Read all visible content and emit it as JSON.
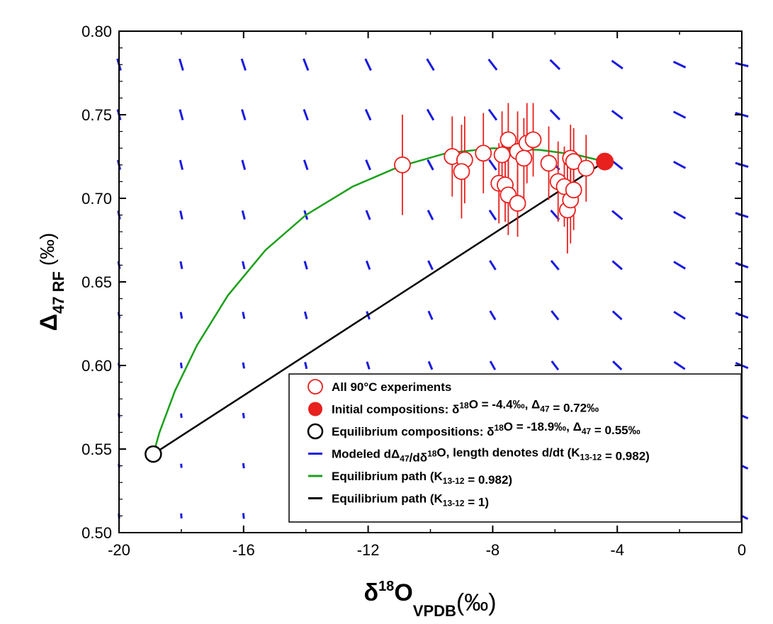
{
  "chart_data": {
    "type": "scatter",
    "title": "",
    "xlabel": {
      "main": "δ",
      "sup": "18",
      "tail": "O",
      "sub": "VPDB",
      "unit": "(‰)"
    },
    "ylabel": {
      "main": "Δ",
      "sub": "47 RF",
      "unit": "(‰)"
    },
    "xlim": [
      -20,
      0
    ],
    "ylim": [
      0.5,
      0.8
    ],
    "x_ticks": [
      -20,
      -16,
      -12,
      -8,
      -4,
      0
    ],
    "x_tick_labels": [
      "-20",
      "-16",
      "-12",
      "-8",
      "-4",
      "0"
    ],
    "y_ticks": [
      0.5,
      0.55,
      0.6,
      0.65,
      0.7,
      0.75,
      0.8
    ],
    "y_tick_labels": [
      "0.50",
      "0.55",
      "0.60",
      "0.65",
      "0.70",
      "0.75",
      "0.80"
    ],
    "grid": false,
    "legend_position": "bottom-right",
    "colors": {
      "experiments": "#e8201e",
      "initial": "#e8201e",
      "equilibrium": "#000000",
      "modeled": "#1a1adf",
      "path_k0982": "#1aa01a",
      "path_k1": "#000000"
    },
    "series": [
      {
        "name": "All 90°C experiments",
        "marker": "open-circle",
        "points": [
          {
            "x": -10.9,
            "y": 0.72,
            "err": 0.015
          },
          {
            "x": -9.3,
            "y": 0.725,
            "err": 0.012
          },
          {
            "x": -8.9,
            "y": 0.723,
            "err": 0.013
          },
          {
            "x": -9.0,
            "y": 0.716,
            "err": 0.014
          },
          {
            "x": -8.3,
            "y": 0.727,
            "err": 0.012
          },
          {
            "x": -7.7,
            "y": 0.726,
            "err": 0.013
          },
          {
            "x": -7.5,
            "y": 0.735,
            "err": 0.011
          },
          {
            "x": -7.2,
            "y": 0.728,
            "err": 0.012
          },
          {
            "x": -6.9,
            "y": 0.733,
            "err": 0.012
          },
          {
            "x": -6.7,
            "y": 0.735,
            "err": 0.011
          },
          {
            "x": -7.0,
            "y": 0.724,
            "err": 0.012
          },
          {
            "x": -7.8,
            "y": 0.709,
            "err": 0.012
          },
          {
            "x": -7.6,
            "y": 0.708,
            "err": 0.011
          },
          {
            "x": -7.5,
            "y": 0.702,
            "err": 0.012
          },
          {
            "x": -7.2,
            "y": 0.697,
            "err": 0.01
          },
          {
            "x": -6.2,
            "y": 0.721,
            "err": 0.011
          },
          {
            "x": -5.9,
            "y": 0.71,
            "err": 0.012
          },
          {
            "x": -5.7,
            "y": 0.707,
            "err": 0.012
          },
          {
            "x": -5.6,
            "y": 0.693,
            "err": 0.013
          },
          {
            "x": -5.5,
            "y": 0.699,
            "err": 0.013
          },
          {
            "x": -5.4,
            "y": 0.705,
            "err": 0.012
          },
          {
            "x": -5.5,
            "y": 0.724,
            "err": 0.01
          },
          {
            "x": -5.4,
            "y": 0.722,
            "err": 0.01
          },
          {
            "x": -5.0,
            "y": 0.718,
            "err": 0.01
          }
        ]
      },
      {
        "name": "Initial compositions: δ¹⁸O = -4.4‰, Δ₄₇ = 0.72‰",
        "marker": "filled-circle",
        "points": [
          {
            "x": -4.4,
            "y": 0.722
          }
        ]
      },
      {
        "name": "Equilibrium compositions: δ¹⁸O = -18.9‰, Δ₄₇ = 0.55‰",
        "marker": "open-circle-black",
        "points": [
          {
            "x": -18.9,
            "y": 0.547
          }
        ]
      },
      {
        "name": "Modeled dΔ₄₇/dδ¹⁸O, length denotes d/dt (K₁₃₋₁₂ = 0.982)",
        "marker": "vector-field"
      },
      {
        "name": "Equilibrium path (K₁₃₋₁₂ = 0.982)",
        "marker": "line",
        "curve": [
          {
            "x": -18.9,
            "y": 0.547
          },
          {
            "x": -18.7,
            "y": 0.56
          },
          {
            "x": -18.2,
            "y": 0.585
          },
          {
            "x": -17.5,
            "y": 0.612
          },
          {
            "x": -16.5,
            "y": 0.642
          },
          {
            "x": -15.3,
            "y": 0.669
          },
          {
            "x": -14.0,
            "y": 0.69
          },
          {
            "x": -12.5,
            "y": 0.707
          },
          {
            "x": -11.0,
            "y": 0.719
          },
          {
            "x": -9.5,
            "y": 0.727
          },
          {
            "x": -8.0,
            "y": 0.73
          },
          {
            "x": -6.5,
            "y": 0.729
          },
          {
            "x": -5.3,
            "y": 0.726
          },
          {
            "x": -4.4,
            "y": 0.722
          }
        ]
      },
      {
        "name": "Equilibrium path (K₁₃₋₁₂ = 1)",
        "marker": "line",
        "curve": [
          {
            "x": -18.9,
            "y": 0.547
          },
          {
            "x": -4.4,
            "y": 0.722
          }
        ]
      }
    ],
    "legend": [
      {
        "symbol": "open-circle-red",
        "text_parts": [
          [
            "All 90°C experiments",
            ""
          ]
        ]
      },
      {
        "symbol": "filled-circle-red",
        "text_parts": [
          [
            "Initial compositions: δ",
            ""
          ],
          [
            "18",
            "sup"
          ],
          [
            "O = -4.4‰, Δ",
            ""
          ],
          [
            "47",
            "sub"
          ],
          [
            " = 0.72‰",
            ""
          ]
        ]
      },
      {
        "symbol": "open-circle-black",
        "text_parts": [
          [
            "Equilibrium compositions: δ",
            ""
          ],
          [
            "18",
            "sup"
          ],
          [
            "O = -18.9‰, Δ",
            ""
          ],
          [
            "47",
            "sub"
          ],
          [
            " = 0.55‰",
            ""
          ]
        ]
      },
      {
        "symbol": "line-blue",
        "text_parts": [
          [
            "Modeled dΔ",
            ""
          ],
          [
            "47",
            "sub"
          ],
          [
            "/dδ",
            ""
          ],
          [
            "18",
            "sup"
          ],
          [
            "O, length denotes d/dt (K",
            ""
          ],
          [
            "13-12",
            "sub"
          ],
          [
            " = 0.982)",
            ""
          ]
        ]
      },
      {
        "symbol": "line-green",
        "text_parts": [
          [
            "Equilibrium path (K",
            ""
          ],
          [
            "13-12",
            "sub"
          ],
          [
            " = 0.982)",
            ""
          ]
        ]
      },
      {
        "symbol": "line-black",
        "text_parts": [
          [
            "Equilibrium path (K",
            ""
          ],
          [
            "13-12",
            "sub"
          ],
          [
            " = 1)",
            ""
          ]
        ]
      }
    ]
  }
}
